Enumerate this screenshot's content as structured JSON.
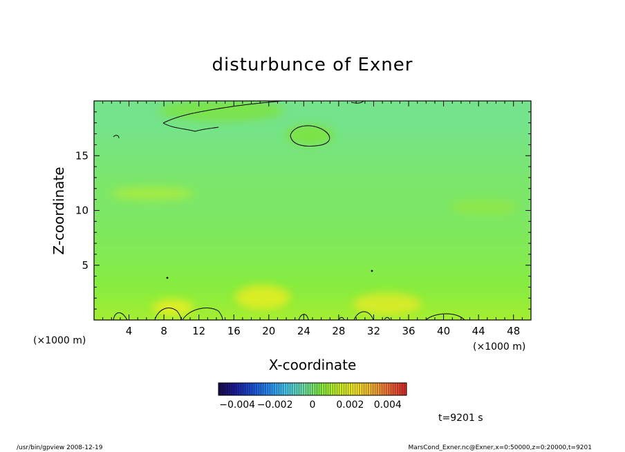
{
  "chart_data": {
    "type": "heatmap",
    "title": "disturbunce of Exner",
    "xlabel": "X-coordinate",
    "ylabel": "Z-coordinate",
    "x_unit": "(×1000 m)",
    "x_unit_right": "(×1000 m)",
    "xlim": [
      0,
      50
    ],
    "ylim": [
      0,
      20
    ],
    "xticks": [
      4,
      8,
      12,
      16,
      20,
      24,
      28,
      32,
      36,
      40,
      44,
      48
    ],
    "xtick_labels": [
      "4",
      "8",
      "12",
      "16",
      "20",
      "24",
      "28",
      "32",
      "36",
      "40",
      "44",
      "48"
    ],
    "yticks": [
      5,
      10,
      15
    ],
    "ytick_labels": [
      "5",
      "10",
      "15"
    ],
    "field_range": [
      -0.005,
      0.005
    ],
    "field_estimate": {
      "z_levels": [
        0,
        2,
        4,
        6,
        8,
        10,
        12,
        14,
        16,
        18,
        20
      ],
      "values": [
        0.0009,
        0.0006,
        0.0004,
        0.0003,
        0.0002,
        0.0001,
        0.0001,
        0.0,
        -0.0001,
        -0.0002,
        -0.0002
      ]
    },
    "colorbar": {
      "tick_values": [
        -0.004,
        -0.002,
        0,
        0.002,
        0.004
      ],
      "tick_labels": [
        "−0.004",
        "−0.002",
        "0",
        "0.002",
        "0.004"
      ],
      "range": [
        -0.005,
        0.005
      ],
      "colors": [
        "#1a0a4a",
        "#1d1d9a",
        "#1c52d8",
        "#2a8ff0",
        "#4ac8e8",
        "#6ee0a8",
        "#86ec40",
        "#c6f020",
        "#f4e81c",
        "#f2b234",
        "#ee6a3a",
        "#d82828"
      ]
    },
    "time_label": "t=9201 s"
  },
  "footer": {
    "left": "/usr/bin/gpview   2008-12-19",
    "right": "MarsCond_Exner.nc@Exner,x=0:50000,z=0:20000,t=9201"
  }
}
